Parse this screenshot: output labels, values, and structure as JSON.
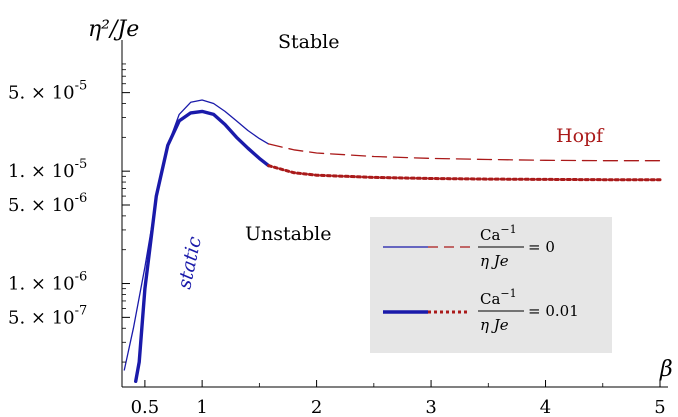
{
  "chart_data": {
    "type": "line",
    "title": "",
    "xlabel": "β",
    "ylabel": "η²/Je",
    "x_ticks": [
      0.5,
      1,
      2,
      3,
      4,
      5
    ],
    "x_tick_labels": [
      "0.5",
      "1",
      "2",
      "3",
      "4",
      "5"
    ],
    "y_scale": "log",
    "y_ticks": [
      5e-07,
      1e-06,
      5e-06,
      1e-05,
      5e-05
    ],
    "y_tick_mantissa": [
      "5.",
      "1.",
      "5.",
      "1.",
      "5."
    ],
    "y_tick_exponent": [
      "-7",
      "-6",
      "-6",
      "-5",
      "-5"
    ],
    "xlim": [
      0.3,
      5.0
    ],
    "ylim": [
      1.2e-07,
      0.00013
    ],
    "grid": false,
    "legend": "bottom-right",
    "annotations": {
      "stable": "Stable",
      "unstable": "Unstable",
      "hopf": "Hopf",
      "static": "static"
    },
    "colors": {
      "static_curve": "#1a1aaa",
      "hopf_curve": "#aa1a1a",
      "legend_bg": "#e6e6e6"
    },
    "series": [
      {
        "name": "Ca⁻¹/(η Je) = 0",
        "segments": [
          {
            "kind": "static",
            "x": [
              0.32,
              0.4,
              0.5,
              0.6,
              0.7,
              0.8,
              0.9,
              1.0,
              1.1,
              1.2,
              1.3,
              1.4,
              1.5,
              1.58
            ],
            "y": [
              1.7e-07,
              4e-07,
              1.4e-06,
              5.6e-06,
              1.7e-05,
              3.2e-05,
              4.1e-05,
              4.3e-05,
              4e-05,
              3.4e-05,
              2.8e-05,
              2.3e-05,
              1.95e-05,
              1.75e-05
            ]
          },
          {
            "kind": "hopf",
            "x": [
              1.58,
              1.8,
              2.0,
              2.5,
              3.0,
              3.5,
              4.0,
              4.5,
              5.0
            ],
            "y": [
              1.75e-05,
              1.55e-05,
              1.45e-05,
              1.35e-05,
              1.3e-05,
              1.27e-05,
              1.25e-05,
              1.24e-05,
              1.24e-05
            ]
          }
        ]
      },
      {
        "name": "Ca⁻¹/(η Je) = 0.01",
        "segments": [
          {
            "kind": "static",
            "x": [
              0.42,
              0.45,
              0.5,
              0.6,
              0.7,
              0.8,
              0.9,
              1.0,
              1.1,
              1.2,
              1.3,
              1.4,
              1.5,
              1.58
            ],
            "y": [
              1.35e-07,
              2e-07,
              9e-07,
              6e-06,
              1.7e-05,
              2.8e-05,
              3.3e-05,
              3.4e-05,
              3.2e-05,
              2.6e-05,
              2e-05,
              1.6e-05,
              1.3e-05,
              1.12e-05
            ]
          },
          {
            "kind": "hopf",
            "x": [
              1.58,
              1.8,
              2.0,
              2.5,
              3.0,
              3.5,
              4.0,
              4.5,
              5.0
            ],
            "y": [
              1.12e-05,
              9.7e-06,
              9.2e-06,
              8.8e-06,
              8.6e-06,
              8.5e-06,
              8.45e-06,
              8.4e-06,
              8.4e-06
            ]
          }
        ]
      }
    ],
    "legend_entries": [
      {
        "numerator": "Ca",
        "numerator_exp": "−1",
        "denominator": "η Je",
        "rhs": "= 0"
      },
      {
        "numerator": "Ca",
        "numerator_exp": "−1",
        "denominator": "η Je",
        "rhs": "= 0.01"
      }
    ]
  }
}
